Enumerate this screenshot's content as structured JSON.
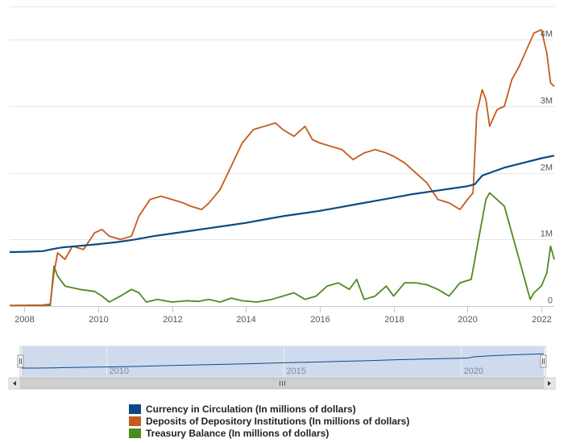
{
  "chart_data": {
    "type": "line",
    "x_axis": {
      "ticks": [
        "2008",
        "2010",
        "2012",
        "2014",
        "2016",
        "2018",
        "2020",
        "2022"
      ],
      "range": [
        2007.6,
        2022.35
      ]
    },
    "y_axis": {
      "ticks": [
        0,
        1000000,
        2000000,
        3000000,
        4000000
      ],
      "tick_labels": [
        "0",
        "1M",
        "2M",
        "3M",
        "4M"
      ],
      "range": [
        0,
        4500000
      ],
      "position": "right"
    },
    "grid": true,
    "legend_position": "bottom",
    "series": [
      {
        "name": "Currency in Circulation (In millions of dollars)",
        "color": "#0c4a85",
        "points": [
          [
            2007.6,
            810000
          ],
          [
            2008.0,
            815000
          ],
          [
            2008.5,
            825000
          ],
          [
            2008.8,
            860000
          ],
          [
            2009.0,
            880000
          ],
          [
            2009.5,
            905000
          ],
          [
            2010.0,
            930000
          ],
          [
            2010.5,
            960000
          ],
          [
            2011.0,
            1000000
          ],
          [
            2011.5,
            1050000
          ],
          [
            2012.0,
            1090000
          ],
          [
            2012.5,
            1130000
          ],
          [
            2013.0,
            1170000
          ],
          [
            2013.5,
            1210000
          ],
          [
            2014.0,
            1250000
          ],
          [
            2014.5,
            1300000
          ],
          [
            2015.0,
            1350000
          ],
          [
            2015.5,
            1390000
          ],
          [
            2016.0,
            1430000
          ],
          [
            2016.5,
            1480000
          ],
          [
            2017.0,
            1530000
          ],
          [
            2017.5,
            1580000
          ],
          [
            2018.0,
            1630000
          ],
          [
            2018.5,
            1680000
          ],
          [
            2019.0,
            1720000
          ],
          [
            2019.5,
            1760000
          ],
          [
            2020.0,
            1800000
          ],
          [
            2020.2,
            1830000
          ],
          [
            2020.4,
            1960000
          ],
          [
            2020.7,
            2020000
          ],
          [
            2021.0,
            2080000
          ],
          [
            2021.5,
            2150000
          ],
          [
            2022.0,
            2220000
          ],
          [
            2022.35,
            2260000
          ]
        ]
      },
      {
        "name": "Deposits of Depository Institutions (In millions of dollars)",
        "color": "#c55a1c",
        "points": [
          [
            2007.6,
            10000
          ],
          [
            2008.0,
            12000
          ],
          [
            2008.5,
            15000
          ],
          [
            2008.7,
            30000
          ],
          [
            2008.8,
            500000
          ],
          [
            2008.9,
            800000
          ],
          [
            2009.1,
            700000
          ],
          [
            2009.3,
            900000
          ],
          [
            2009.6,
            850000
          ],
          [
            2009.9,
            1100000
          ],
          [
            2010.1,
            1150000
          ],
          [
            2010.3,
            1050000
          ],
          [
            2010.6,
            1000000
          ],
          [
            2010.9,
            1050000
          ],
          [
            2011.1,
            1350000
          ],
          [
            2011.4,
            1600000
          ],
          [
            2011.7,
            1650000
          ],
          [
            2012.0,
            1600000
          ],
          [
            2012.3,
            1550000
          ],
          [
            2012.5,
            1500000
          ],
          [
            2012.8,
            1450000
          ],
          [
            2013.0,
            1550000
          ],
          [
            2013.3,
            1750000
          ],
          [
            2013.6,
            2100000
          ],
          [
            2013.9,
            2450000
          ],
          [
            2014.2,
            2650000
          ],
          [
            2014.5,
            2700000
          ],
          [
            2014.8,
            2750000
          ],
          [
            2015.0,
            2650000
          ],
          [
            2015.3,
            2550000
          ],
          [
            2015.6,
            2700000
          ],
          [
            2015.8,
            2500000
          ],
          [
            2016.0,
            2450000
          ],
          [
            2016.3,
            2400000
          ],
          [
            2016.6,
            2350000
          ],
          [
            2016.9,
            2200000
          ],
          [
            2017.2,
            2300000
          ],
          [
            2017.5,
            2350000
          ],
          [
            2017.8,
            2300000
          ],
          [
            2018.0,
            2250000
          ],
          [
            2018.3,
            2150000
          ],
          [
            2018.6,
            2000000
          ],
          [
            2018.9,
            1850000
          ],
          [
            2019.2,
            1600000
          ],
          [
            2019.5,
            1550000
          ],
          [
            2019.8,
            1450000
          ],
          [
            2020.0,
            1600000
          ],
          [
            2020.15,
            1700000
          ],
          [
            2020.25,
            2900000
          ],
          [
            2020.4,
            3250000
          ],
          [
            2020.5,
            3100000
          ],
          [
            2020.6,
            2700000
          ],
          [
            2020.8,
            2950000
          ],
          [
            2021.0,
            3000000
          ],
          [
            2021.2,
            3400000
          ],
          [
            2021.4,
            3600000
          ],
          [
            2021.6,
            3850000
          ],
          [
            2021.8,
            4100000
          ],
          [
            2022.0,
            4150000
          ],
          [
            2022.15,
            3800000
          ],
          [
            2022.25,
            3350000
          ],
          [
            2022.35,
            3300000
          ]
        ]
      },
      {
        "name": "Treasury Balance (In millions of dollars)",
        "color": "#4e8a20",
        "points": [
          [
            2007.6,
            5000
          ],
          [
            2008.0,
            5000
          ],
          [
            2008.7,
            10000
          ],
          [
            2008.8,
            600000
          ],
          [
            2008.9,
            450000
          ],
          [
            2009.1,
            300000
          ],
          [
            2009.5,
            250000
          ],
          [
            2009.9,
            220000
          ],
          [
            2010.1,
            150000
          ],
          [
            2010.3,
            60000
          ],
          [
            2010.6,
            150000
          ],
          [
            2010.9,
            250000
          ],
          [
            2011.1,
            200000
          ],
          [
            2011.3,
            60000
          ],
          [
            2011.6,
            100000
          ],
          [
            2012.0,
            60000
          ],
          [
            2012.4,
            80000
          ],
          [
            2012.7,
            70000
          ],
          [
            2013.0,
            100000
          ],
          [
            2013.3,
            60000
          ],
          [
            2013.6,
            120000
          ],
          [
            2013.9,
            80000
          ],
          [
            2014.3,
            60000
          ],
          [
            2014.7,
            100000
          ],
          [
            2015.0,
            150000
          ],
          [
            2015.3,
            200000
          ],
          [
            2015.6,
            100000
          ],
          [
            2015.9,
            150000
          ],
          [
            2016.2,
            300000
          ],
          [
            2016.5,
            350000
          ],
          [
            2016.8,
            250000
          ],
          [
            2017.0,
            400000
          ],
          [
            2017.2,
            100000
          ],
          [
            2017.5,
            150000
          ],
          [
            2017.8,
            300000
          ],
          [
            2018.0,
            150000
          ],
          [
            2018.3,
            350000
          ],
          [
            2018.6,
            350000
          ],
          [
            2018.9,
            320000
          ],
          [
            2019.2,
            250000
          ],
          [
            2019.5,
            150000
          ],
          [
            2019.8,
            350000
          ],
          [
            2020.1,
            400000
          ],
          [
            2020.3,
            1000000
          ],
          [
            2020.5,
            1600000
          ],
          [
            2020.6,
            1700000
          ],
          [
            2020.8,
            1600000
          ],
          [
            2021.0,
            1500000
          ],
          [
            2021.2,
            1100000
          ],
          [
            2021.4,
            700000
          ],
          [
            2021.6,
            300000
          ],
          [
            2021.7,
            100000
          ],
          [
            2021.8,
            200000
          ],
          [
            2022.0,
            300000
          ],
          [
            2022.15,
            500000
          ],
          [
            2022.25,
            900000
          ],
          [
            2022.35,
            700000
          ]
        ]
      }
    ]
  },
  "navigator": {
    "tick_labels": [
      "2010",
      "2015",
      "2020"
    ]
  }
}
